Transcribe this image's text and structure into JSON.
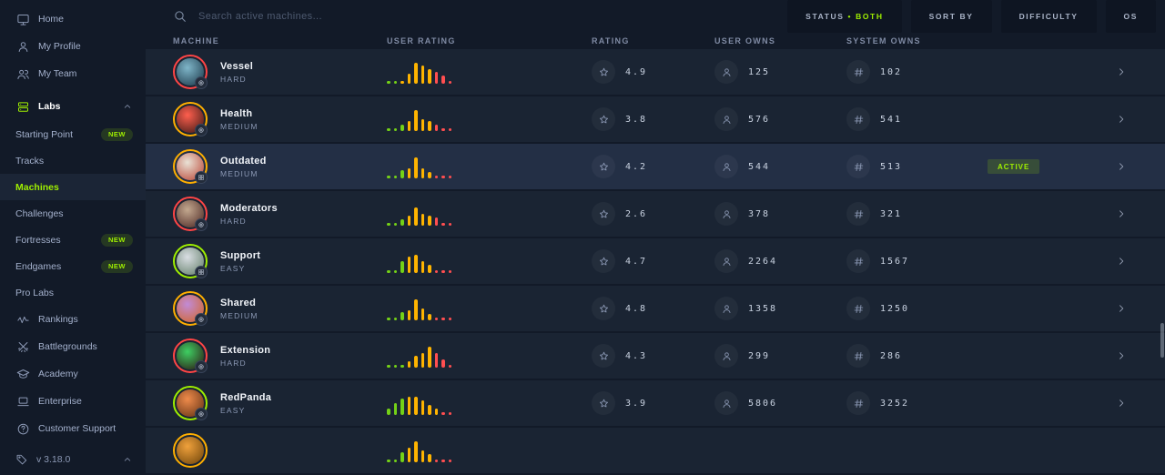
{
  "sidebar": {
    "items": [
      {
        "id": "home",
        "label": "Home",
        "icon": "home"
      },
      {
        "id": "my-profile",
        "label": "My Profile",
        "icon": "profile"
      },
      {
        "id": "my-team",
        "label": "My Team",
        "icon": "team"
      },
      {
        "id": "labs",
        "label": "Labs",
        "icon": "labs",
        "emphasis": true,
        "chevron": "up"
      },
      {
        "id": "starting-point",
        "label": "Starting Point",
        "indent": true,
        "badge": "NEW"
      },
      {
        "id": "tracks",
        "label": "Tracks",
        "indent": true
      },
      {
        "id": "machines",
        "label": "Machines",
        "indent": true,
        "selected": true
      },
      {
        "id": "challenges",
        "label": "Challenges",
        "indent": true
      },
      {
        "id": "fortresses",
        "label": "Fortresses",
        "indent": true,
        "badge": "NEW"
      },
      {
        "id": "endgames",
        "label": "Endgames",
        "indent": true,
        "badge": "NEW"
      },
      {
        "id": "pro-labs",
        "label": "Pro Labs",
        "indent": true
      },
      {
        "id": "rankings",
        "label": "Rankings",
        "icon": "rankings"
      },
      {
        "id": "battlegrounds",
        "label": "Battlegrounds",
        "icon": "battlegrounds"
      },
      {
        "id": "academy",
        "label": "Academy",
        "icon": "academy"
      },
      {
        "id": "enterprise",
        "label": "Enterprise",
        "icon": "enterprise"
      },
      {
        "id": "customer-support",
        "label": "Customer Support",
        "icon": "support"
      }
    ],
    "version": {
      "label": "v 3.18.0",
      "icon": "version-tag",
      "chevron": "up"
    }
  },
  "topbar": {
    "search_placeholder": "Search active machines...",
    "filters": {
      "status": {
        "label": "STATUS",
        "separator": "•",
        "value": "BOTH"
      },
      "sort_by": "SORT BY",
      "difficulty": "DIFFICULTY",
      "os": "OS"
    }
  },
  "table": {
    "headers": [
      "MACHINE",
      "USER RATING",
      "RATING",
      "USER OWNS",
      "SYSTEM OWNS"
    ],
    "rows": [
      {
        "name": "Vessel",
        "difficulty": "HARD",
        "os": "linux",
        "rating": "4.9",
        "user_owns": "125",
        "system_owns": "102",
        "status": "",
        "highlight": false,
        "avatar_colors": [
          "#7fb6c9",
          "#173243"
        ],
        "histogram": [
          [
            1,
            "g"
          ],
          [
            1,
            "g"
          ],
          [
            1,
            "o"
          ],
          [
            4,
            "o"
          ],
          [
            9,
            "o"
          ],
          [
            8,
            "o"
          ],
          [
            6,
            "o"
          ],
          [
            5,
            "r"
          ],
          [
            3,
            "r"
          ],
          [
            1,
            "r"
          ]
        ]
      },
      {
        "name": "Health",
        "difficulty": "MEDIUM",
        "os": "linux",
        "rating": "3.8",
        "user_owns": "576",
        "system_owns": "541",
        "status": "",
        "highlight": false,
        "avatar_colors": [
          "#ff5f4e",
          "#331612"
        ],
        "histogram": [
          [
            1,
            "g"
          ],
          [
            1,
            "g"
          ],
          [
            2,
            "g"
          ],
          [
            4,
            "o"
          ],
          [
            9,
            "o"
          ],
          [
            5,
            "o"
          ],
          [
            4,
            "o"
          ],
          [
            2,
            "r"
          ],
          [
            1,
            "r"
          ],
          [
            1,
            "r"
          ]
        ]
      },
      {
        "name": "Outdated",
        "difficulty": "MEDIUM",
        "os": "windows",
        "rating": "4.2",
        "user_owns": "544",
        "system_owns": "513",
        "status": "ACTIVE",
        "highlight": true,
        "avatar_colors": [
          "#e9e2d6",
          "#b8402f"
        ],
        "histogram": [
          [
            1,
            "g"
          ],
          [
            1,
            "g"
          ],
          [
            3,
            "g"
          ],
          [
            4,
            "o"
          ],
          [
            9,
            "o"
          ],
          [
            4,
            "o"
          ],
          [
            2,
            "o"
          ],
          [
            1,
            "r"
          ],
          [
            1,
            "r"
          ],
          [
            1,
            "r"
          ]
        ]
      },
      {
        "name": "Moderators",
        "difficulty": "HARD",
        "os": "linux",
        "rating": "2.6",
        "user_owns": "378",
        "system_owns": "321",
        "status": "",
        "highlight": false,
        "avatar_colors": [
          "#c3a88f",
          "#47221f"
        ],
        "histogram": [
          [
            1,
            "g"
          ],
          [
            1,
            "g"
          ],
          [
            2,
            "g"
          ],
          [
            4,
            "o"
          ],
          [
            8,
            "o"
          ],
          [
            5,
            "o"
          ],
          [
            4,
            "o"
          ],
          [
            3,
            "r"
          ],
          [
            1,
            "r"
          ],
          [
            1,
            "r"
          ]
        ]
      },
      {
        "name": "Support",
        "difficulty": "EASY",
        "os": "windows",
        "rating": "4.7",
        "user_owns": "2264",
        "system_owns": "1567",
        "status": "",
        "highlight": false,
        "avatar_colors": [
          "#d9dee3",
          "#5d7a63"
        ],
        "histogram": [
          [
            1,
            "g"
          ],
          [
            1,
            "g"
          ],
          [
            5,
            "g"
          ],
          [
            7,
            "o"
          ],
          [
            8,
            "o"
          ],
          [
            5,
            "o"
          ],
          [
            3,
            "o"
          ],
          [
            1,
            "r"
          ],
          [
            1,
            "r"
          ],
          [
            1,
            "r"
          ]
        ]
      },
      {
        "name": "Shared",
        "difficulty": "MEDIUM",
        "os": "linux",
        "rating": "4.8",
        "user_owns": "1358",
        "system_owns": "1250",
        "status": "",
        "highlight": false,
        "avatar_colors": [
          "#c18bd6",
          "#d3641e"
        ],
        "histogram": [
          [
            1,
            "g"
          ],
          [
            1,
            "g"
          ],
          [
            3,
            "g"
          ],
          [
            4,
            "o"
          ],
          [
            9,
            "o"
          ],
          [
            5,
            "o"
          ],
          [
            2,
            "o"
          ],
          [
            1,
            "r"
          ],
          [
            1,
            "r"
          ],
          [
            1,
            "r"
          ]
        ]
      },
      {
        "name": "Extension",
        "difficulty": "HARD",
        "os": "linux",
        "rating": "4.3",
        "user_owns": "299",
        "system_owns": "286",
        "status": "",
        "highlight": false,
        "avatar_colors": [
          "#3ecf62",
          "#2c1010"
        ],
        "histogram": [
          [
            1,
            "g"
          ],
          [
            1,
            "g"
          ],
          [
            1,
            "g"
          ],
          [
            2,
            "o"
          ],
          [
            5,
            "o"
          ],
          [
            6,
            "o"
          ],
          [
            9,
            "o"
          ],
          [
            6,
            "r"
          ],
          [
            3,
            "r"
          ],
          [
            1,
            "r"
          ]
        ]
      },
      {
        "name": "RedPanda",
        "difficulty": "EASY",
        "os": "linux",
        "rating": "3.9",
        "user_owns": "5806",
        "system_owns": "3252",
        "status": "",
        "highlight": false,
        "avatar_colors": [
          "#ef8b4b",
          "#5c2e12"
        ],
        "histogram": [
          [
            2,
            "g"
          ],
          [
            5,
            "g"
          ],
          [
            7,
            "g"
          ],
          [
            8,
            "o"
          ],
          [
            8,
            "o"
          ],
          [
            6,
            "o"
          ],
          [
            4,
            "o"
          ],
          [
            2,
            "o"
          ],
          [
            1,
            "r"
          ],
          [
            1,
            "r"
          ]
        ]
      },
      {
        "name": "",
        "difficulty": "",
        "os": "",
        "rating": "",
        "user_owns": "",
        "system_owns": "",
        "status": "",
        "highlight": false,
        "partial": true,
        "avatar_colors": [
          "#f0a13c",
          "#6b4208"
        ],
        "histogram": [
          [
            1,
            "g"
          ],
          [
            1,
            "g"
          ],
          [
            4,
            "g"
          ],
          [
            6,
            "o"
          ],
          [
            9,
            "o"
          ],
          [
            5,
            "o"
          ],
          [
            3,
            "o"
          ],
          [
            1,
            "r"
          ],
          [
            1,
            "r"
          ],
          [
            1,
            "r"
          ]
        ]
      }
    ]
  },
  "colors": {
    "accent_green": "#9fef00",
    "bar_green": "#74d117",
    "bar_orange": "#ffb400",
    "bar_red": "#ff4e50",
    "difficulty": {
      "EASY": "#9fef00",
      "MEDIUM": "#ffaf00",
      "HARD": "#ff4545"
    }
  }
}
